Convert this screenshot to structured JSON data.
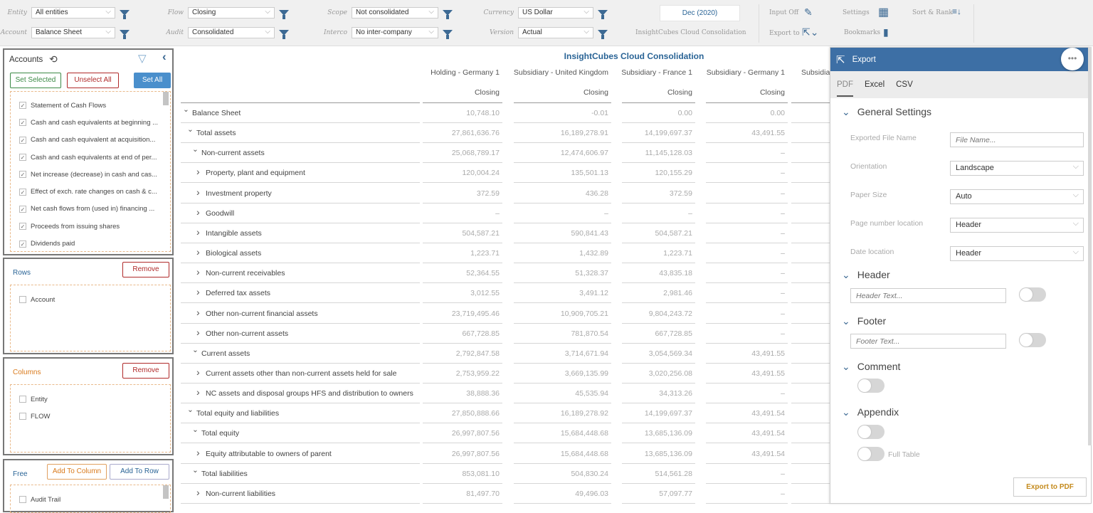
{
  "toolbar": {
    "filters": [
      {
        "label": "Entity",
        "value": "All entities"
      },
      {
        "label": "Account",
        "value": "Balance Sheet"
      },
      {
        "label": "Flow",
        "value": "Closing"
      },
      {
        "label": "Audit",
        "value": "Consolidated"
      },
      {
        "label": "Scope",
        "value": "Not consolidated"
      },
      {
        "label": "Interco",
        "value": "No inter-company"
      },
      {
        "label": "Currency",
        "value": "US Dollar"
      },
      {
        "label": "Version",
        "value": "Actual"
      }
    ],
    "date": "Dec (2020)",
    "app_name": "InsightCubes Cloud Consolidation",
    "input_off": "Input Off",
    "export_to": "Export to",
    "settings": "Settings",
    "bookmarks": "Bookmarks",
    "sort_rank": "Sort & Rank",
    "accent": "#3d6a94"
  },
  "accounts": {
    "title": "Accounts",
    "set_selected": "Set Selected",
    "unselect_all": "Unselect All",
    "set_all": "Set All",
    "items": [
      "Statement of Cash Flows",
      "Cash and cash equivalents at beginning ...",
      "Cash and cash equivalent at acquisition...",
      "Cash and cash equivalents at end of per...",
      "Net increase (decrease) in cash and cas...",
      "Effect of exch. rate changes on cash & c...",
      "Net cash flows from (used in) financing ...",
      "Proceeds from issuing shares",
      "Dividends paid"
    ]
  },
  "rows_panel": {
    "title": "Rows",
    "remove": "Remove",
    "items": [
      "Account"
    ]
  },
  "columns_panel": {
    "title": "Columns",
    "remove": "Remove",
    "items": [
      "Entity",
      "FLOW"
    ]
  },
  "free_panel": {
    "title": "Free",
    "add_to_column": "Add To Column",
    "add_to_row": "Add To Row",
    "items": [
      "Audit Trail"
    ]
  },
  "table": {
    "title": "InsightCubes Cloud Consolidation",
    "columns": [
      "Holding - Germany 1",
      "Subsidiary - United Kingdom",
      "Subsidiary - France 1",
      "Subsidiary - Germany 1",
      "Subsidiar"
    ],
    "subheader": "Closing",
    "rows": [
      {
        "label": "Balance Sheet",
        "level": 0,
        "expanded": true,
        "values": [
          "10,748.10",
          "-0.01",
          "0.00",
          "0.00"
        ]
      },
      {
        "label": "Total assets",
        "level": 1,
        "expanded": true,
        "values": [
          "27,861,636.76",
          "16,189,278.91",
          "14,199,697.37",
          "43,491.55"
        ]
      },
      {
        "label": "Non-current assets",
        "level": 2,
        "expanded": true,
        "values": [
          "25,068,789.17",
          "12,474,606.97",
          "11,145,128.03",
          "–"
        ]
      },
      {
        "label": "Property, plant and equipment",
        "level": 3,
        "expanded": false,
        "values": [
          "120,004.24",
          "135,501.13",
          "120,155.29",
          "–"
        ]
      },
      {
        "label": "Investment property",
        "level": 3,
        "expanded": false,
        "values": [
          "372.59",
          "436.28",
          "372.59",
          "–"
        ]
      },
      {
        "label": "Goodwill",
        "level": 3,
        "expanded": false,
        "values": [
          "–",
          "–",
          "–",
          "–"
        ]
      },
      {
        "label": "Intangible assets",
        "level": 3,
        "expanded": false,
        "values": [
          "504,587.21",
          "590,841.43",
          "504,587.21",
          "–"
        ]
      },
      {
        "label": "Biological assets",
        "level": 3,
        "expanded": false,
        "values": [
          "1,223.71",
          "1,432.89",
          "1,223.71",
          "–"
        ]
      },
      {
        "label": "Non-current receivables",
        "level": 3,
        "expanded": false,
        "values": [
          "52,364.55",
          "51,328.37",
          "43,835.18",
          "–"
        ]
      },
      {
        "label": "Deferred tax assets",
        "level": 3,
        "expanded": false,
        "values": [
          "3,012.55",
          "3,491.12",
          "2,981.46",
          "–"
        ]
      },
      {
        "label": "Other non-current financial assets",
        "level": 3,
        "expanded": false,
        "values": [
          "23,719,495.46",
          "10,909,705.21",
          "9,804,243.72",
          "–"
        ]
      },
      {
        "label": "Other non-current assets",
        "level": 3,
        "expanded": false,
        "values": [
          "667,728.85",
          "781,870.54",
          "667,728.85",
          "–"
        ]
      },
      {
        "label": "Current assets",
        "level": 2,
        "expanded": true,
        "values": [
          "2,792,847.58",
          "3,714,671.94",
          "3,054,569.34",
          "43,491.55"
        ]
      },
      {
        "label": "Current assets other than non-current assets held for sale",
        "level": 3,
        "expanded": false,
        "values": [
          "2,753,959.22",
          "3,669,135.99",
          "3,020,256.08",
          "43,491.55"
        ]
      },
      {
        "label": "NC assets and disposal groups HFS and distribution to owners",
        "level": 3,
        "expanded": false,
        "values": [
          "38,888.36",
          "45,535.94",
          "34,313.26",
          "–"
        ]
      },
      {
        "label": "Total equity and liabilities",
        "level": 1,
        "expanded": true,
        "values": [
          "27,850,888.66",
          "16,189,278.92",
          "14,199,697.37",
          "43,491.54"
        ]
      },
      {
        "label": "Total equity",
        "level": 2,
        "expanded": true,
        "values": [
          "26,997,807.56",
          "15,684,448.68",
          "13,685,136.09",
          "43,491.54"
        ]
      },
      {
        "label": "Equity attributable to owners of parent",
        "level": 3,
        "expanded": false,
        "values": [
          "26,997,807.56",
          "15,684,448.68",
          "13,685,136.09",
          "43,491.54"
        ]
      },
      {
        "label": "Total liabilities",
        "level": 2,
        "expanded": true,
        "values": [
          "853,081.10",
          "504,830.24",
          "514,561.28",
          "–"
        ]
      },
      {
        "label": "Non-current liabilities",
        "level": 3,
        "expanded": false,
        "values": [
          "81,497.70",
          "49,496.03",
          "57,097.77",
          "–"
        ]
      }
    ]
  },
  "export": {
    "title": "Export",
    "tabs": [
      "PDF",
      "Excel",
      "CSV"
    ],
    "general_settings": "General Settings",
    "file_name_label": "Exported File Name",
    "file_name_placeholder": "File Name...",
    "orientation_label": "Orientation",
    "orientation": "Landscape",
    "paper_size_label": "Paper Size",
    "paper_size": "Auto",
    "page_number_label": "Page number location",
    "page_number": "Header",
    "date_label": "Date location",
    "date": "Header",
    "header": "Header",
    "header_placeholder": "Header Text...",
    "header_enabled": false,
    "footer": "Footer",
    "footer_placeholder": "Footer Text...",
    "footer_enabled": false,
    "comment": "Comment",
    "comment_enabled": false,
    "appendix": "Appendix",
    "appendix_enabled": false,
    "full_table": "Full Table",
    "full_table_enabled": false,
    "export_button": "Export to PDF",
    "header_color": "#3d6fa5"
  }
}
